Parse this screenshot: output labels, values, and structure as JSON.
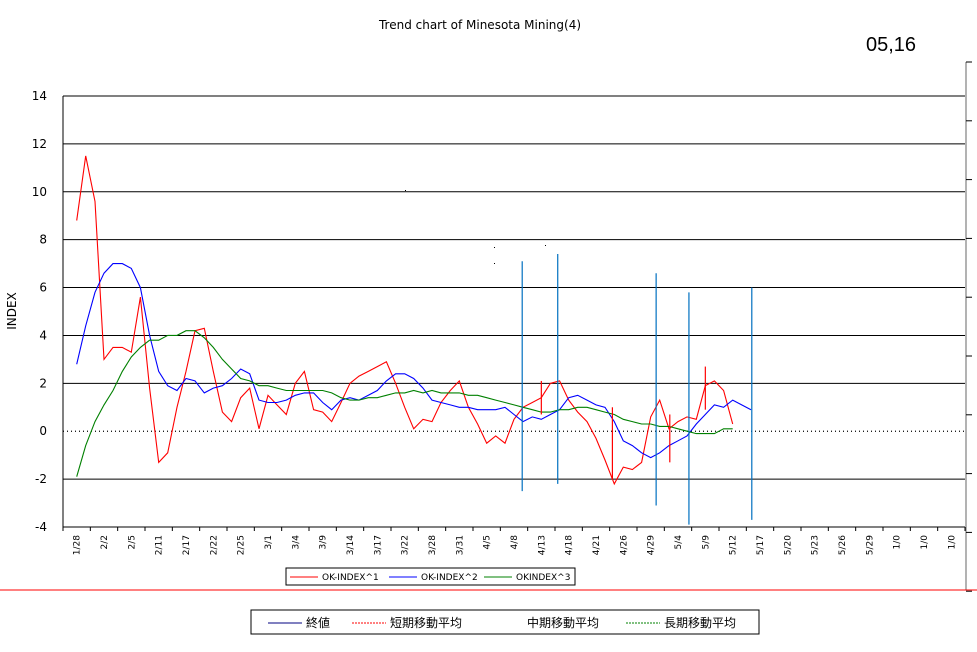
{
  "title": "Trend chart of Minesota Mining(4)",
  "date_stamp": "05,16",
  "legend_top": [
    "OK-INDEX^1",
    "OK-INDEX^2",
    "OKINDEX^3"
  ],
  "legend_bottom": [
    "終値",
    "短期移動平均",
    "中期移動平均",
    "長期移動平均"
  ],
  "colors": {
    "series1": "#ff0000",
    "series2": "#0000ff",
    "series3": "#008000",
    "markers": "#0070c0",
    "divider": "#ff0000",
    "grid": "#000000"
  },
  "chart_data": {
    "type": "line",
    "title": "Trend chart of Minesota Mining(4)",
    "ylabel": "INDEX",
    "xlabel": "",
    "ylim": [
      -4,
      14
    ],
    "yticks": [
      -4,
      -2,
      0,
      2,
      4,
      6,
      8,
      10,
      12,
      14
    ],
    "x_tick_labels": [
      "1/28",
      "2/2",
      "2/5",
      "2/11",
      "2/17",
      "2/22",
      "2/25",
      "3/1",
      "3/4",
      "3/9",
      "3/14",
      "3/17",
      "3/22",
      "3/28",
      "3/31",
      "4/5",
      "4/8",
      "4/13",
      "4/18",
      "4/21",
      "4/26",
      "4/29",
      "5/4",
      "5/9",
      "5/12",
      "5/17",
      "5/20",
      "5/23",
      "5/26",
      "5/29",
      "1/0",
      "1/0",
      "1/0"
    ],
    "grid": true,
    "legend": "bottom",
    "series": [
      {
        "name": "OK-INDEX^1",
        "x": [
          0,
          0.33,
          0.67,
          1,
          1.33,
          1.67,
          2,
          2.33,
          2.67,
          3,
          3.33,
          3.67,
          4,
          4.33,
          4.67,
          5,
          5.33,
          5.67,
          6,
          6.33,
          6.67,
          7,
          7.33,
          7.67,
          8,
          8.33,
          8.67,
          9,
          9.33,
          9.67,
          10,
          10.33,
          10.67,
          11,
          11.33,
          11.67,
          12,
          12.33,
          12.67,
          13,
          13.33,
          13.67,
          14,
          14.33,
          14.67,
          15,
          15.33,
          15.67,
          16,
          16.33,
          16.67,
          17,
          17.33,
          17.67,
          18,
          18.33,
          18.67,
          19,
          19.33,
          19.67,
          20,
          20.33,
          20.67,
          21,
          21.33,
          21.67,
          22,
          22.33,
          22.67,
          23,
          23.33,
          23.67,
          24
        ],
        "values": [
          8.8,
          11.5,
          9.6,
          3.0,
          3.5,
          3.5,
          3.3,
          5.6,
          1.8,
          -1.3,
          -0.9,
          1.0,
          2.5,
          4.2,
          4.3,
          2.5,
          0.8,
          0.4,
          1.4,
          1.8,
          0.1,
          1.5,
          1.1,
          0.7,
          2.0,
          2.5,
          0.9,
          0.8,
          0.4,
          1.2,
          2.0,
          2.3,
          2.5,
          2.7,
          2.9,
          2.0,
          1.0,
          0.1,
          0.5,
          0.4,
          1.2,
          1.7,
          2.1,
          1.0,
          0.3,
          -0.5,
          -0.2,
          -0.5,
          0.5,
          1.0,
          1.2,
          1.4,
          2.0,
          2.1,
          1.3,
          0.8,
          0.4,
          -0.3,
          -1.2,
          -2.2,
          -1.5,
          -1.6,
          -1.3,
          0.6,
          1.3,
          0.1,
          0.4,
          0.6,
          0.5,
          1.9,
          2.1,
          1.7,
          0.3
        ]
      },
      {
        "name": "OK-INDEX^2",
        "x": [
          0,
          0.33,
          0.67,
          1,
          1.33,
          1.67,
          2,
          2.33,
          2.67,
          3,
          3.33,
          3.67,
          4,
          4.33,
          4.67,
          5,
          5.33,
          5.67,
          6,
          6.33,
          6.67,
          7,
          7.33,
          7.67,
          8,
          8.33,
          8.67,
          9,
          9.33,
          9.67,
          10,
          10.33,
          10.67,
          11,
          11.33,
          11.67,
          12,
          12.33,
          12.67,
          13,
          13.33,
          13.67,
          14,
          14.33,
          14.67,
          15,
          15.33,
          15.67,
          16,
          16.33,
          16.67,
          17,
          17.33,
          17.67,
          18,
          18.33,
          18.67,
          19,
          19.33,
          19.67,
          20,
          20.33,
          20.67,
          21,
          21.33,
          21.67,
          22,
          22.33,
          22.67,
          23,
          23.33,
          23.67,
          24,
          24.33,
          24.67
        ],
        "values": [
          2.8,
          4.4,
          5.8,
          6.6,
          7.0,
          7.0,
          6.8,
          6.0,
          4.0,
          2.5,
          1.9,
          1.7,
          2.2,
          2.1,
          1.6,
          1.8,
          1.9,
          2.2,
          2.6,
          2.4,
          1.3,
          1.2,
          1.2,
          1.3,
          1.5,
          1.6,
          1.6,
          1.2,
          0.9,
          1.3,
          1.4,
          1.3,
          1.5,
          1.7,
          2.1,
          2.4,
          2.4,
          2.2,
          1.8,
          1.3,
          1.2,
          1.1,
          1.0,
          1.0,
          0.9,
          0.9,
          0.9,
          1.0,
          0.7,
          0.4,
          0.6,
          0.5,
          0.7,
          0.9,
          1.4,
          1.5,
          1.3,
          1.1,
          1.0,
          0.4,
          -0.4,
          -0.6,
          -0.9,
          -1.1,
          -0.9,
          -0.6,
          -0.4,
          -0.2,
          0.3,
          0.7,
          1.1,
          1.0,
          1.3,
          1.1,
          0.9
        ]
      },
      {
        "name": "OKINDEX^3",
        "x": [
          0,
          0.33,
          0.67,
          1,
          1.33,
          1.67,
          2,
          2.33,
          2.67,
          3,
          3.33,
          3.67,
          4,
          4.33,
          4.67,
          5,
          5.33,
          5.67,
          6,
          6.33,
          6.67,
          7,
          7.33,
          7.67,
          8,
          8.33,
          8.67,
          9,
          9.33,
          9.67,
          10,
          10.33,
          10.67,
          11,
          11.33,
          11.67,
          12,
          12.33,
          12.67,
          13,
          13.33,
          13.67,
          14,
          14.33,
          14.67,
          15,
          15.33,
          15.67,
          16,
          16.33,
          16.67,
          17,
          17.33,
          17.67,
          18,
          18.33,
          18.67,
          19,
          19.33,
          19.67,
          20,
          20.33,
          20.67,
          21,
          21.33,
          21.67,
          22,
          22.33,
          22.67,
          23,
          23.33,
          23.67,
          24
        ],
        "values": [
          -1.9,
          -0.6,
          0.4,
          1.1,
          1.7,
          2.5,
          3.1,
          3.5,
          3.8,
          3.8,
          4.0,
          4.0,
          4.2,
          4.2,
          3.9,
          3.5,
          3.0,
          2.6,
          2.2,
          2.1,
          1.9,
          1.9,
          1.8,
          1.7,
          1.7,
          1.7,
          1.7,
          1.7,
          1.6,
          1.4,
          1.3,
          1.3,
          1.4,
          1.4,
          1.5,
          1.6,
          1.6,
          1.7,
          1.6,
          1.7,
          1.6,
          1.6,
          1.6,
          1.5,
          1.5,
          1.4,
          1.3,
          1.2,
          1.1,
          1.0,
          0.9,
          0.8,
          0.8,
          0.9,
          0.9,
          1.0,
          1.0,
          0.9,
          0.8,
          0.7,
          0.5,
          0.4,
          0.3,
          0.3,
          0.2,
          0.2,
          0.1,
          0.0,
          -0.1,
          -0.1,
          -0.1,
          0.1,
          0.1
        ]
      }
    ],
    "vertical_markers": [
      {
        "x": 16.3,
        "y_top": 7.1,
        "y_bottom": -2.5
      },
      {
        "x": 17.6,
        "y_top": 7.4,
        "y_bottom": -2.2
      },
      {
        "x": 21.2,
        "y_top": 6.6,
        "y_bottom": -3.1
      },
      {
        "x": 22.4,
        "y_top": 5.8,
        "y_bottom": -3.9
      },
      {
        "x": 24.7,
        "y_top": 6.0,
        "y_bottom": -3.7
      }
    ],
    "red_spikes": [
      {
        "x": 17.0,
        "y_top": 2.1,
        "y_bottom": 0.7
      },
      {
        "x": 19.6,
        "y_top": 1.0,
        "y_bottom": -2.0
      },
      {
        "x": 21.7,
        "y_top": 0.7,
        "y_bottom": -1.3
      },
      {
        "x": 23.0,
        "y_top": 2.7,
        "y_bottom": 0.9
      }
    ]
  }
}
